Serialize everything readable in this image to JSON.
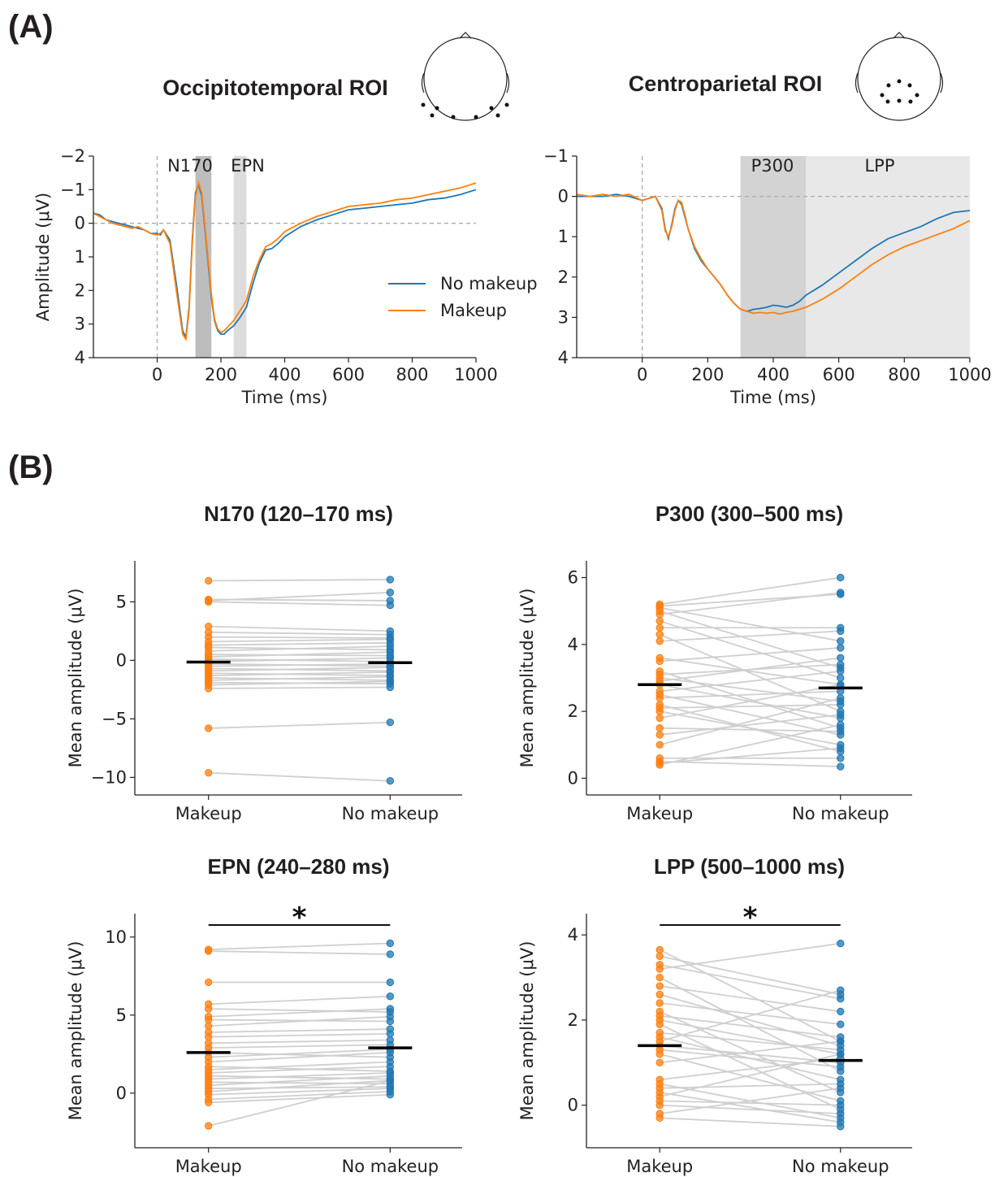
{
  "panel_labels": [
    "(A)",
    "(B)"
  ],
  "colors": {
    "no_makeup": "#1f77b4",
    "makeup": "#ff7f0e",
    "window_n170": "#bdbdbd",
    "window_epn": "#dcdcdc",
    "window_p300": "#d3d3d3",
    "window_lpp": "#e8e8e8",
    "paired_line": "#cfcfcf",
    "mean_bar": "#000000"
  },
  "chart_data": [
    {
      "type": "line",
      "title": "Occipitotemporal ROI",
      "xlabel": "Time (ms)",
      "ylabel": "Amplitude (μV)",
      "xlim": [
        -200,
        1000
      ],
      "ylim": [
        -2,
        4
      ],
      "y_inverted": true,
      "xticks": [
        0,
        200,
        400,
        600,
        800,
        1000
      ],
      "yticks": [
        -2,
        -1,
        0,
        1,
        2,
        3,
        4
      ],
      "windows": [
        {
          "label": "N170",
          "start": 120,
          "end": 170,
          "color": "#bdbdbd"
        },
        {
          "label": "EPN",
          "start": 240,
          "end": 280,
          "color": "#dcdcdc"
        }
      ],
      "legend": {
        "entries": [
          "No makeup",
          "Makeup"
        ],
        "placement": "center-right"
      },
      "series": [
        {
          "name": "No makeup",
          "color": "#1f77b4",
          "x": [
            -200,
            -180,
            -160,
            -140,
            -120,
            -100,
            -80,
            -60,
            -40,
            -20,
            0,
            10,
            20,
            40,
            60,
            80,
            90,
            100,
            110,
            120,
            130,
            140,
            150,
            160,
            170,
            180,
            190,
            200,
            210,
            220,
            240,
            260,
            280,
            300,
            320,
            340,
            360,
            380,
            400,
            450,
            500,
            550,
            600,
            650,
            700,
            750,
            800,
            850,
            900,
            950,
            1000
          ],
          "y": [
            -0.3,
            -0.25,
            -0.1,
            -0.05,
            0.0,
            0.05,
            0.1,
            0.15,
            0.2,
            0.3,
            0.3,
            0.35,
            0.2,
            0.5,
            1.8,
            3.2,
            3.4,
            2.5,
            0.5,
            -0.9,
            -1.15,
            -0.8,
            0.2,
            1.2,
            2.2,
            2.9,
            3.2,
            3.3,
            3.3,
            3.2,
            3.05,
            2.8,
            2.5,
            1.8,
            1.2,
            0.8,
            0.75,
            0.6,
            0.4,
            0.1,
            -0.1,
            -0.25,
            -0.4,
            -0.45,
            -0.5,
            -0.55,
            -0.6,
            -0.7,
            -0.75,
            -0.85,
            -1.0
          ]
        },
        {
          "name": "Makeup",
          "color": "#ff7f0e",
          "x": [
            -200,
            -180,
            -160,
            -140,
            -120,
            -100,
            -80,
            -60,
            -40,
            -20,
            0,
            10,
            20,
            40,
            60,
            80,
            90,
            100,
            110,
            120,
            130,
            140,
            150,
            160,
            170,
            180,
            190,
            200,
            210,
            220,
            240,
            260,
            280,
            300,
            320,
            340,
            360,
            380,
            400,
            450,
            500,
            550,
            600,
            650,
            700,
            750,
            800,
            850,
            900,
            950,
            1000
          ],
          "y": [
            -0.3,
            -0.2,
            -0.1,
            0.0,
            0.05,
            0.1,
            0.15,
            0.1,
            0.2,
            0.3,
            0.35,
            0.3,
            0.2,
            0.6,
            2.0,
            3.3,
            3.45,
            2.6,
            0.6,
            -0.8,
            -1.2,
            -0.9,
            0.1,
            1.1,
            2.1,
            2.85,
            3.15,
            3.25,
            3.2,
            3.1,
            2.9,
            2.6,
            2.3,
            1.6,
            1.1,
            0.7,
            0.6,
            0.45,
            0.25,
            0.0,
            -0.2,
            -0.35,
            -0.5,
            -0.55,
            -0.6,
            -0.7,
            -0.75,
            -0.85,
            -0.95,
            -1.05,
            -1.2
          ]
        }
      ]
    },
    {
      "type": "line",
      "title": "Centroparietal ROI",
      "xlabel": "Time (ms)",
      "ylabel": "",
      "xlim": [
        -200,
        1000
      ],
      "ylim": [
        -1,
        4
      ],
      "y_inverted": true,
      "xticks": [
        0,
        200,
        400,
        600,
        800,
        1000
      ],
      "yticks": [
        -1,
        0,
        1,
        2,
        3,
        4
      ],
      "windows": [
        {
          "label": "P300",
          "start": 300,
          "end": 500,
          "color": "#d3d3d3"
        },
        {
          "label": "LPP",
          "start": 500,
          "end": 1000,
          "color": "#e8e8e8"
        }
      ],
      "series": [
        {
          "name": "No makeup",
          "color": "#1f77b4",
          "x": [
            -200,
            -160,
            -120,
            -80,
            -40,
            0,
            20,
            40,
            60,
            70,
            80,
            90,
            100,
            110,
            120,
            130,
            140,
            160,
            180,
            200,
            220,
            240,
            260,
            280,
            300,
            320,
            340,
            360,
            380,
            400,
            420,
            440,
            460,
            480,
            500,
            550,
            600,
            650,
            700,
            750,
            800,
            850,
            900,
            950,
            1000
          ],
          "y": [
            0.0,
            0.0,
            0.0,
            -0.05,
            0.0,
            0.1,
            0.05,
            0.0,
            0.3,
            0.8,
            1.05,
            0.7,
            0.3,
            0.1,
            0.2,
            0.5,
            0.8,
            1.3,
            1.6,
            1.8,
            2.0,
            2.2,
            2.45,
            2.65,
            2.8,
            2.85,
            2.8,
            2.78,
            2.75,
            2.7,
            2.72,
            2.75,
            2.7,
            2.6,
            2.45,
            2.2,
            1.9,
            1.6,
            1.3,
            1.05,
            0.9,
            0.75,
            0.55,
            0.4,
            0.35
          ]
        },
        {
          "name": "Makeup",
          "color": "#ff7f0e",
          "x": [
            -200,
            -160,
            -120,
            -80,
            -40,
            0,
            20,
            40,
            60,
            70,
            80,
            90,
            100,
            110,
            120,
            130,
            140,
            160,
            180,
            200,
            220,
            240,
            260,
            280,
            300,
            320,
            340,
            360,
            380,
            400,
            420,
            440,
            460,
            480,
            500,
            550,
            600,
            650,
            700,
            750,
            800,
            850,
            900,
            950,
            1000
          ],
          "y": [
            -0.05,
            0.0,
            -0.05,
            0.0,
            -0.05,
            0.1,
            0.05,
            0.0,
            0.35,
            0.85,
            1.0,
            0.75,
            0.35,
            0.1,
            0.15,
            0.45,
            0.8,
            1.25,
            1.55,
            1.8,
            2.0,
            2.2,
            2.45,
            2.65,
            2.8,
            2.85,
            2.9,
            2.88,
            2.9,
            2.88,
            2.92,
            2.88,
            2.85,
            2.8,
            2.75,
            2.55,
            2.3,
            2.0,
            1.7,
            1.45,
            1.25,
            1.1,
            0.95,
            0.8,
            0.6
          ]
        }
      ]
    },
    {
      "type": "scatter",
      "title": "N170 (120–170 ms)",
      "ylabel": "Mean amplitude (μV)",
      "categories": [
        "Makeup",
        "No makeup"
      ],
      "ylim": [
        -11.5,
        8.5
      ],
      "yticks": [
        5,
        0,
        -5,
        -10
      ],
      "ytick_labels": [
        "5",
        "0",
        "−5",
        "−10"
      ],
      "significance": "",
      "means": {
        "Makeup": -0.15,
        "No makeup": -0.2
      },
      "pairs": [
        [
          6.8,
          6.9
        ],
        [
          5.2,
          5.1
        ],
        [
          5.1,
          5.8
        ],
        [
          5.0,
          4.7
        ],
        [
          2.9,
          2.5
        ],
        [
          2.4,
          2.2
        ],
        [
          2.0,
          1.9
        ],
        [
          1.6,
          1.8
        ],
        [
          1.3,
          1.5
        ],
        [
          1.1,
          0.9
        ],
        [
          0.8,
          1.2
        ],
        [
          0.5,
          0.4
        ],
        [
          0.3,
          0.7
        ],
        [
          0.1,
          -0.1
        ],
        [
          -0.1,
          0.2
        ],
        [
          -0.3,
          -0.5
        ],
        [
          -0.5,
          -0.3
        ],
        [
          -0.7,
          -0.9
        ],
        [
          -0.9,
          -0.6
        ],
        [
          -1.1,
          -1.3
        ],
        [
          -1.3,
          -1.0
        ],
        [
          -1.5,
          -1.7
        ],
        [
          -1.7,
          -1.4
        ],
        [
          -1.9,
          -2.0
        ],
        [
          -2.1,
          -1.8
        ],
        [
          -2.4,
          -2.3
        ],
        [
          -5.8,
          -5.3
        ],
        [
          -9.6,
          -10.3
        ]
      ]
    },
    {
      "type": "scatter",
      "title": "P300 (300–500 ms)",
      "ylabel": "Mean amplitude (μV)",
      "categories": [
        "Makeup",
        "No makeup"
      ],
      "ylim": [
        -0.5,
        6.5
      ],
      "yticks": [
        0,
        2,
        4,
        6
      ],
      "ytick_labels": [
        "0",
        "2",
        "4",
        "6"
      ],
      "significance": "",
      "means": {
        "Makeup": 2.8,
        "No makeup": 2.7
      },
      "pairs": [
        [
          5.2,
          6.0
        ],
        [
          5.15,
          5.5
        ],
        [
          5.1,
          4.1
        ],
        [
          5.0,
          3.3
        ],
        [
          4.9,
          5.55
        ],
        [
          4.7,
          3.0
        ],
        [
          4.5,
          4.5
        ],
        [
          4.3,
          2.0
        ],
        [
          4.1,
          4.4
        ],
        [
          3.6,
          2.8
        ],
        [
          3.5,
          3.9
        ],
        [
          3.2,
          1.5
        ],
        [
          3.1,
          3.4
        ],
        [
          3.0,
          2.3
        ],
        [
          2.9,
          3.6
        ],
        [
          2.8,
          1.8
        ],
        [
          2.6,
          3.2
        ],
        [
          2.5,
          1.3
        ],
        [
          2.4,
          2.6
        ],
        [
          2.2,
          0.8
        ],
        [
          2.1,
          2.2
        ],
        [
          2.0,
          1.0
        ],
        [
          1.8,
          2.8
        ],
        [
          1.5,
          1.4
        ],
        [
          1.3,
          1.9
        ],
        [
          1.0,
          2.4
        ],
        [
          0.6,
          0.6
        ],
        [
          0.5,
          0.35
        ],
        [
          0.45,
          0.9
        ],
        [
          0.4,
          1.6
        ]
      ]
    },
    {
      "type": "scatter",
      "title": "EPN (240–280 ms)",
      "ylabel": "Mean amplitude (μV)",
      "categories": [
        "Makeup",
        "No makeup"
      ],
      "ylim": [
        -3.5,
        11.5
      ],
      "yticks": [
        0,
        5,
        10
      ],
      "ytick_labels": [
        "0",
        "5",
        "10"
      ],
      "significance": "*",
      "means": {
        "Makeup": 2.6,
        "No makeup": 2.9
      },
      "pairs": [
        [
          9.2,
          9.6
        ],
        [
          9.1,
          8.9
        ],
        [
          7.1,
          7.1
        ],
        [
          5.7,
          6.2
        ],
        [
          5.4,
          5.2
        ],
        [
          4.9,
          5.4
        ],
        [
          4.7,
          4.6
        ],
        [
          4.3,
          4.9
        ],
        [
          3.9,
          4.1
        ],
        [
          3.6,
          3.8
        ],
        [
          3.2,
          3.4
        ],
        [
          2.9,
          3.1
        ],
        [
          2.6,
          2.3
        ],
        [
          2.3,
          2.8
        ],
        [
          2.0,
          2.6
        ],
        [
          1.7,
          1.4
        ],
        [
          1.5,
          2.0
        ],
        [
          1.3,
          1.7
        ],
        [
          1.1,
          0.9
        ],
        [
          0.9,
          1.3
        ],
        [
          0.7,
          0.6
        ],
        [
          0.5,
          1.1
        ],
        [
          0.3,
          0.4
        ],
        [
          0.1,
          0.8
        ],
        [
          -0.1,
          0.3
        ],
        [
          -0.4,
          0.1
        ],
        [
          -0.6,
          -0.1
        ],
        [
          -2.1,
          0.8
        ]
      ]
    },
    {
      "type": "scatter",
      "title": "LPP (500–1000 ms)",
      "ylabel": "Mean amplitude (μV)",
      "categories": [
        "Makeup",
        "No makeup"
      ],
      "ylim": [
        -1.0,
        4.5
      ],
      "yticks": [
        0,
        2,
        4
      ],
      "ytick_labels": [
        "0",
        "2",
        "4"
      ],
      "significance": "*",
      "means": {
        "Makeup": 1.4,
        "No makeup": 1.05
      },
      "pairs": [
        [
          3.65,
          1.5
        ],
        [
          3.5,
          2.6
        ],
        [
          3.3,
          2.5
        ],
        [
          3.2,
          3.8
        ],
        [
          3.0,
          0.8
        ],
        [
          2.8,
          2.2
        ],
        [
          2.6,
          1.4
        ],
        [
          2.4,
          1.9
        ],
        [
          2.2,
          0.3
        ],
        [
          2.1,
          1.6
        ],
        [
          2.0,
          1.2
        ],
        [
          1.9,
          -0.1
        ],
        [
          1.7,
          1.3
        ],
        [
          1.6,
          0.6
        ],
        [
          1.5,
          2.7
        ],
        [
          1.4,
          1.0
        ],
        [
          1.3,
          0.9
        ],
        [
          1.2,
          0.1
        ],
        [
          1.0,
          1.5
        ],
        [
          0.6,
          1.1
        ],
        [
          0.5,
          -0.3
        ],
        [
          0.4,
          0.5
        ],
        [
          0.3,
          -0.4
        ],
        [
          0.2,
          1.2
        ],
        [
          0.1,
          0.0
        ],
        [
          0.0,
          -0.2
        ],
        [
          -0.2,
          0.4
        ],
        [
          -0.3,
          -0.5
        ]
      ]
    }
  ]
}
